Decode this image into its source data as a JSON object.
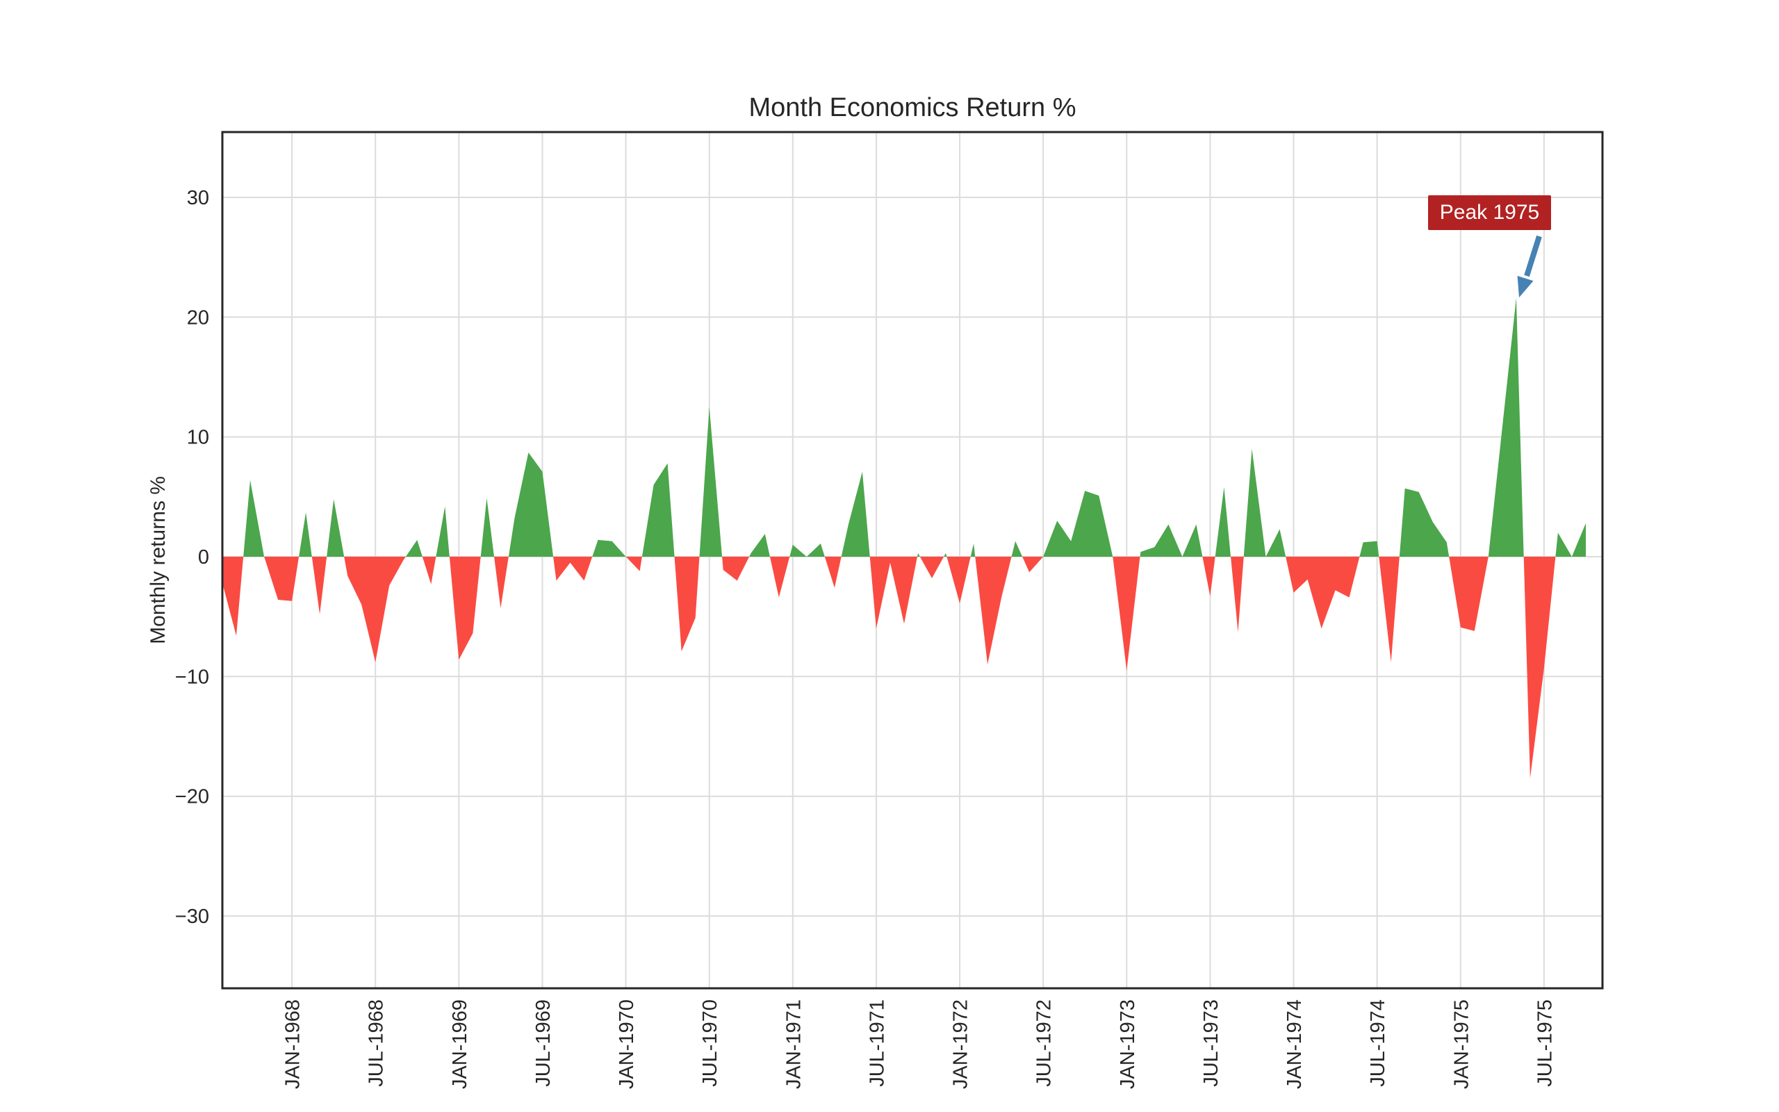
{
  "chart": {
    "title": "Month Economics Return %",
    "ylabel": "Monthly returns %",
    "y_tick_labels": [
      "30",
      "20",
      "10",
      "0",
      "−10",
      "−20",
      "−30"
    ],
    "y_tick_values": [
      30,
      20,
      10,
      0,
      -10,
      -20,
      -30
    ]
  },
  "annotation": {
    "label": "Peak 1975",
    "points_to_month": "MAY-1975",
    "points_to_value": 21.6
  },
  "colors": {
    "positive": "#4CA64C",
    "negative": "#FA4B42",
    "grid": "#DCDCDC",
    "frame": "#262626",
    "tick_text": "#262626",
    "annotation_bg": "#B22222",
    "annotation_text": "#FFFFFF",
    "arrow": "#4682B4"
  },
  "chart_data": {
    "type": "area",
    "title": "Month Economics Return %",
    "xlabel": "",
    "ylabel": "Monthly returns %",
    "ylim": [
      -36,
      35.5
    ],
    "grid": true,
    "positive_color_meaning": "positive monthly return",
    "negative_color_meaning": "negative monthly return",
    "x_tick_labels": [
      "JAN-1968",
      "JUL-1968",
      "JAN-1969",
      "JUL-1969",
      "JAN-1970",
      "JUL-1970",
      "JAN-1971",
      "JUL-1971",
      "JAN-1972",
      "JUL-1972",
      "JAN-1973",
      "JUL-1973",
      "JAN-1974",
      "JUL-1974",
      "JAN-1975",
      "JUL-1975"
    ],
    "months": [
      "AUG-1967",
      "SEP-1967",
      "OCT-1967",
      "NOV-1967",
      "DEC-1967",
      "JAN-1968",
      "FEB-1968",
      "MAR-1968",
      "APR-1968",
      "MAY-1968",
      "JUN-1968",
      "JUL-1968",
      "AUG-1968",
      "SEP-1968",
      "OCT-1968",
      "NOV-1968",
      "DEC-1968",
      "JAN-1969",
      "FEB-1969",
      "MAR-1969",
      "APR-1969",
      "MAY-1969",
      "JUN-1969",
      "JUL-1969",
      "AUG-1969",
      "SEP-1969",
      "OCT-1969",
      "NOV-1969",
      "DEC-1969",
      "JAN-1970",
      "FEB-1970",
      "MAR-1970",
      "APR-1970",
      "MAY-1970",
      "JUN-1970",
      "JUL-1970",
      "AUG-1970",
      "SEP-1970",
      "OCT-1970",
      "NOV-1970",
      "DEC-1970",
      "JAN-1971",
      "FEB-1971",
      "MAR-1971",
      "APR-1971",
      "MAY-1971",
      "JUN-1971",
      "JUL-1971",
      "AUG-1971",
      "SEP-1971",
      "OCT-1971",
      "NOV-1971",
      "DEC-1971",
      "JAN-1972",
      "FEB-1972",
      "MAR-1972",
      "APR-1972",
      "MAY-1972",
      "JUN-1972",
      "JUL-1972",
      "AUG-1972",
      "SEP-1972",
      "OCT-1972",
      "NOV-1972",
      "DEC-1972",
      "JAN-1973",
      "FEB-1973",
      "MAR-1973",
      "APR-1973",
      "MAY-1973",
      "JUN-1973",
      "JUL-1973",
      "AUG-1973",
      "SEP-1973",
      "OCT-1973",
      "NOV-1973",
      "DEC-1973",
      "JAN-1974",
      "FEB-1974",
      "MAR-1974",
      "APR-1974",
      "MAY-1974",
      "JUN-1974",
      "JUL-1974",
      "AUG-1974",
      "SEP-1974",
      "OCT-1974",
      "NOV-1974",
      "DEC-1974",
      "JAN-1975",
      "FEB-1975",
      "MAR-1975",
      "APR-1975",
      "MAY-1975",
      "JUN-1975",
      "JUL-1975",
      "AUG-1975",
      "SEP-1975",
      "OCT-1975"
    ],
    "values": [
      -2.2,
      -6.6,
      6.4,
      0.0,
      -3.6,
      -3.7,
      3.7,
      -4.8,
      4.8,
      -1.6,
      -4.0,
      -8.8,
      -2.4,
      -0.3,
      1.4,
      -2.3,
      4.2,
      -8.6,
      -6.4,
      4.9,
      -4.3,
      3.2,
      8.7,
      7.1,
      -2.0,
      -0.5,
      -2.0,
      1.4,
      1.3,
      0.0,
      -1.2,
      6.0,
      7.8,
      -7.9,
      -5.1,
      12.5,
      -1.1,
      -2.0,
      0.3,
      1.9,
      -3.4,
      1.0,
      0.0,
      1.1,
      -2.6,
      2.7,
      7.1,
      -6.0,
      -0.5,
      -5.6,
      0.3,
      -1.8,
      0.3,
      -3.9,
      1.1,
      -9.0,
      -3.4,
      1.3,
      -1.3,
      0.0,
      3.0,
      1.3,
      5.5,
      5.1,
      0.0,
      -9.5,
      0.4,
      0.8,
      2.7,
      0.0,
      2.7,
      -3.3,
      5.8,
      -6.3,
      9.0,
      0.0,
      2.3,
      -3.0,
      -1.9,
      -6.0,
      -2.8,
      -3.4,
      1.2,
      1.3,
      -8.8,
      5.7,
      5.4,
      2.9,
      1.2,
      -5.9,
      -6.2,
      0.0,
      10.8,
      21.6,
      -18.5,
      -9.3,
      2.0,
      0.0,
      2.8
    ],
    "annotations": [
      {
        "text": "Peak 1975",
        "month": "MAY-1975",
        "value": 21.6
      }
    ],
    "legend": null
  }
}
